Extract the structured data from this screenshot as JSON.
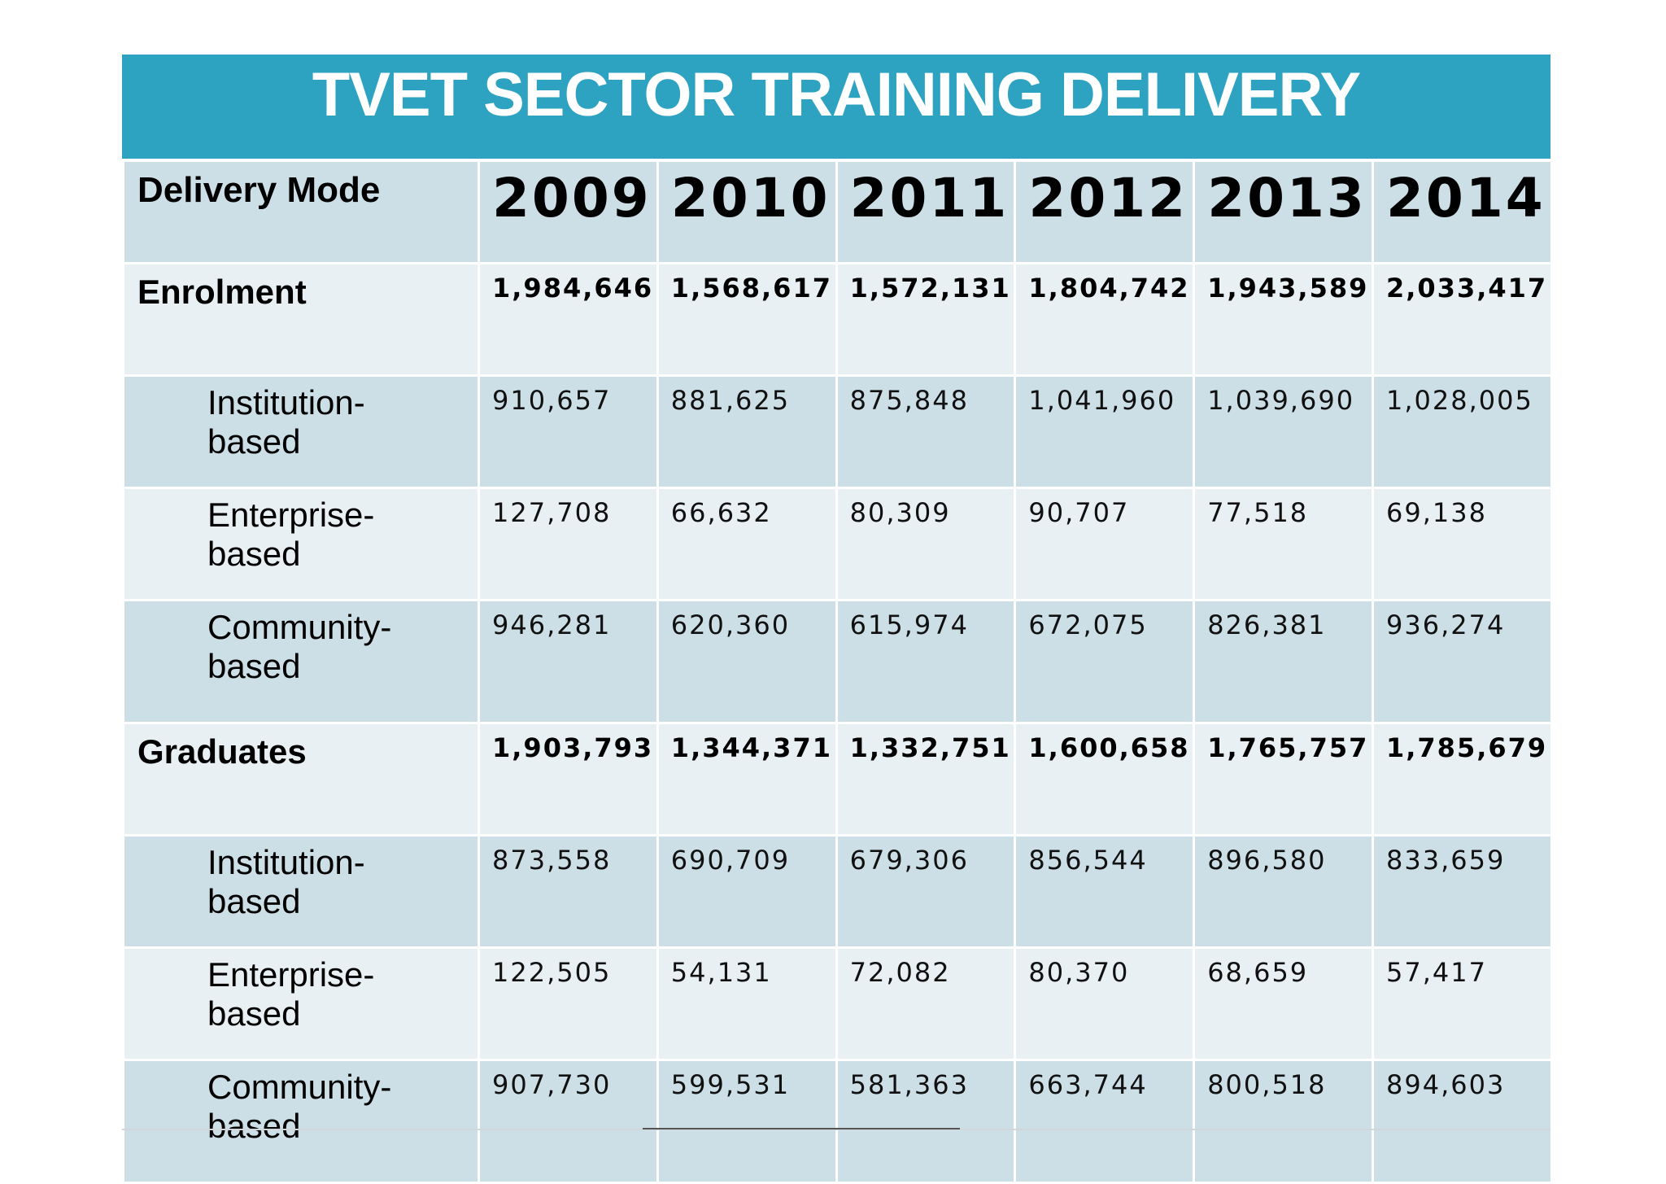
{
  "title": "TVET SECTOR TRAINING DELIVERY",
  "header": {
    "mode_label": "Delivery Mode",
    "years": [
      "2009",
      "2010",
      "2011",
      "2012",
      "2013",
      "2014"
    ]
  },
  "rows": [
    {
      "label_line1": "Enrolment",
      "label_line2": "",
      "level": "total",
      "values": [
        "1,984,646",
        "1,568,617",
        "1,572,131",
        "1,804,742",
        "1,943,589",
        "2,033,417"
      ]
    },
    {
      "label_line1": "Institution-",
      "label_line2": "based",
      "level": "sub",
      "values": [
        "910,657",
        "881,625",
        "875,848",
        "1,041,960",
        "1,039,690",
        "1,028,005"
      ]
    },
    {
      "label_line1": "Enterprise-",
      "label_line2": "based",
      "level": "sub",
      "values": [
        "127,708",
        "66,632",
        "80,309",
        "90,707",
        "77,518",
        "69,138"
      ]
    },
    {
      "label_line1": "Community-",
      "label_line2": "based",
      "level": "sub",
      "values": [
        "946,281",
        "620,360",
        "615,974",
        "672,075",
        "826,381",
        "936,274"
      ]
    },
    {
      "label_line1": "Graduates",
      "label_line2": "",
      "level": "total",
      "values": [
        "1,903,793",
        "1,344,371",
        "1,332,751",
        "1,600,658",
        "1,765,757",
        "1,785,679"
      ]
    },
    {
      "label_line1": "Institution-",
      "label_line2": "based",
      "level": "sub",
      "values": [
        "873,558",
        "690,709",
        "679,306",
        "856,544",
        "896,580",
        "833,659"
      ]
    },
    {
      "label_line1": "Enterprise-",
      "label_line2": "based",
      "level": "sub",
      "values": [
        "122,505",
        "54,131",
        "72,082",
        "80,370",
        "68,659",
        "57,417"
      ]
    },
    {
      "label_line1": "Community-",
      "label_line2": "based",
      "level": "sub",
      "values": [
        "907,730",
        "599,531",
        "581,363",
        "663,744",
        "800,518",
        "894,603"
      ]
    }
  ],
  "colors": {
    "title_bar": "#2ea3c1",
    "row_dark": "#cddfe6",
    "row_light": "#e8f0f4"
  }
}
